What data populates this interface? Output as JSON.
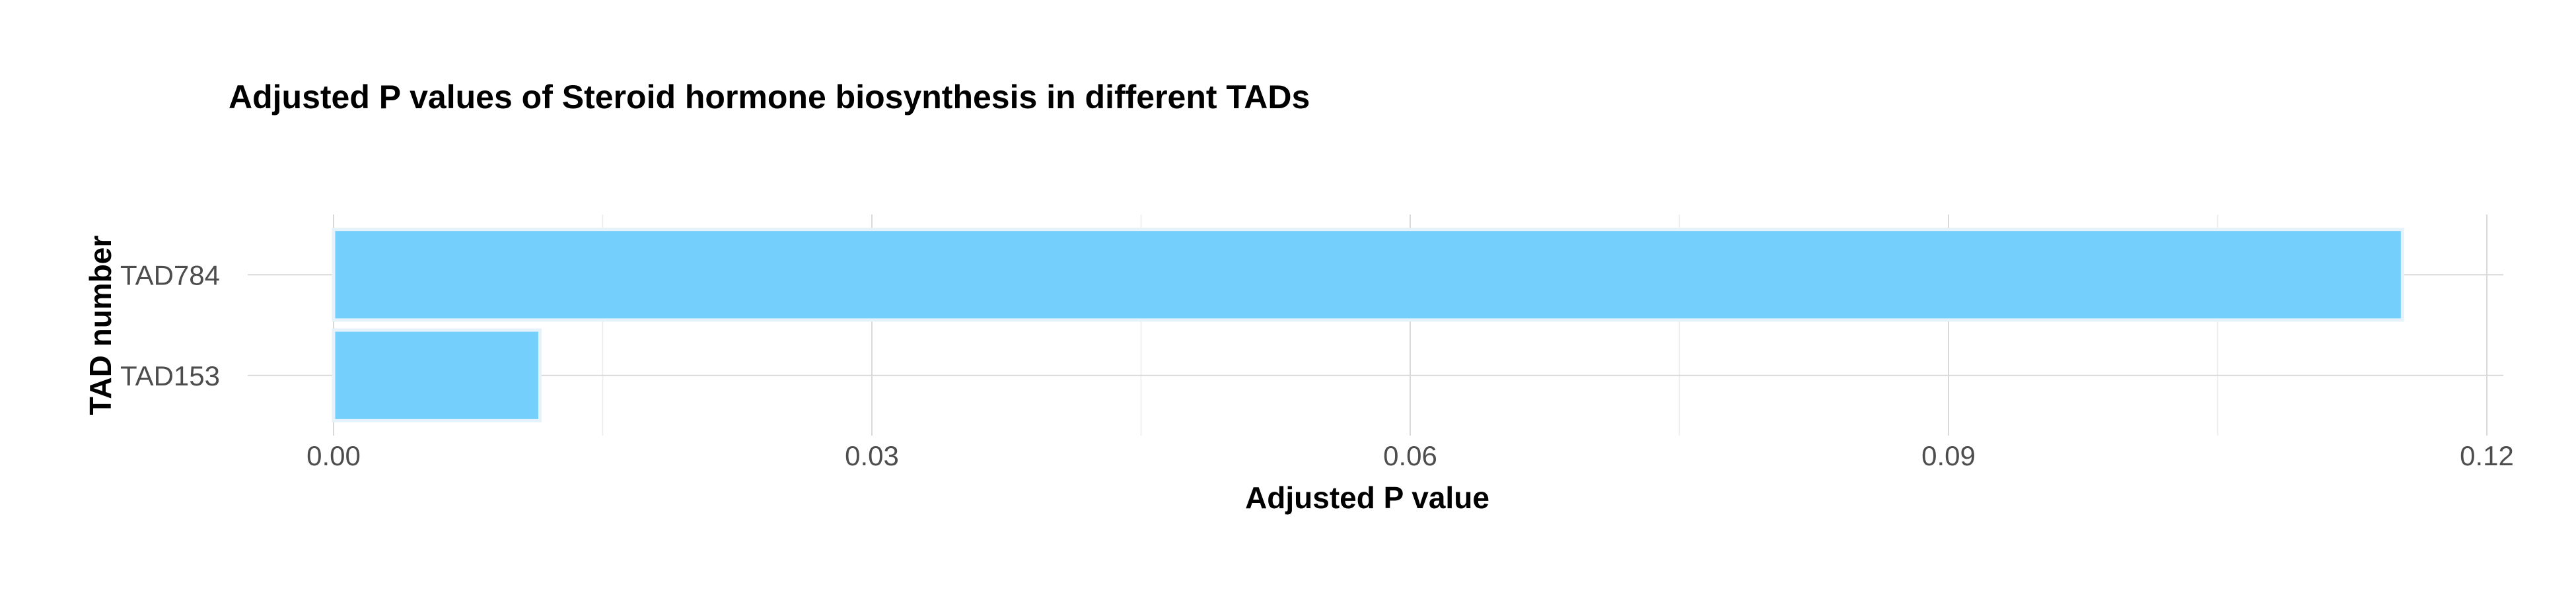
{
  "chart_data": {
    "type": "bar",
    "orientation": "horizontal",
    "title": "Adjusted P values of Steroid hormone biosynthesis in different TADs",
    "xlabel": "Adjusted P value",
    "ylabel": "TAD number",
    "categories": [
      "TAD784",
      "TAD153"
    ],
    "values": [
      0.1153,
      0.0115
    ],
    "xlim": [
      0,
      0.12
    ],
    "xticks": [
      "0.00",
      "0.03",
      "0.06",
      "0.09",
      "0.12"
    ],
    "grid": true,
    "legend": "none",
    "bar_color": "#75cffc"
  }
}
